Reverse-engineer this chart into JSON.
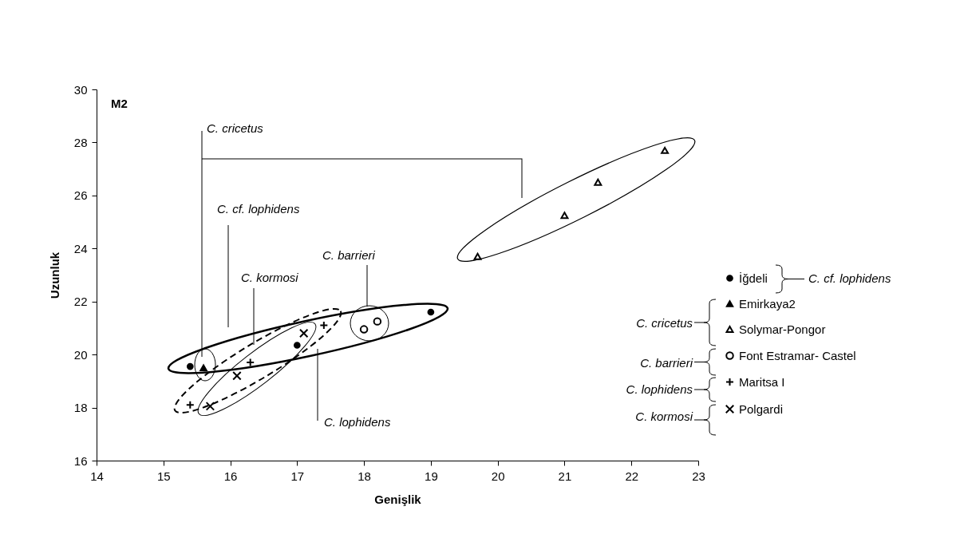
{
  "chart_data": {
    "type": "scatter",
    "xlabel": "Genişlik",
    "ylabel": "Uzunluk",
    "xlim": [
      14,
      23
    ],
    "ylim": [
      16,
      30
    ],
    "xticks": [
      14,
      15,
      16,
      17,
      18,
      19,
      20,
      21,
      22,
      23
    ],
    "yticks": [
      16,
      18,
      20,
      22,
      24,
      26,
      28,
      30
    ],
    "grid": false,
    "legend": "right",
    "annotations": [
      "M2",
      "C. cricetus",
      "C. cf. lophidens",
      "C. kormosi",
      "C. barrieri",
      "C. lophidens",
      "C. cf. lophidens",
      "C. cricetus",
      "C. barrieri",
      "C. lophidens",
      "C. kormosi"
    ],
    "series": [
      {
        "name": "İğdeli",
        "color": "#000000",
        "x": [
          15.4,
          17.0,
          19.0
        ],
        "values": [
          19.55,
          20.35,
          21.6
        ]
      },
      {
        "name": "Emirkaya2",
        "color": "#000000",
        "x": [
          15.6
        ],
        "values": [
          19.5
        ]
      },
      {
        "name": "Solymar-Pongor",
        "color": "#000000",
        "x": [
          19.7,
          21.0,
          21.5,
          22.5
        ],
        "values": [
          23.7,
          25.25,
          26.5,
          27.7
        ]
      },
      {
        "name": "Font Estramar- Castel",
        "color": "#000000",
        "x": [
          18.0,
          18.2
        ],
        "values": [
          20.95,
          21.25
        ]
      },
      {
        "name": "Maritsa I",
        "color": "#000000",
        "x": [
          15.4,
          16.3,
          17.4
        ],
        "values": [
          18.1,
          19.7,
          21.1
        ]
      },
      {
        "name": "Polgardi",
        "color": "#000000",
        "x": [
          15.7,
          16.1,
          17.1
        ],
        "values": [
          18.05,
          19.2,
          20.8
        ]
      }
    ]
  }
}
